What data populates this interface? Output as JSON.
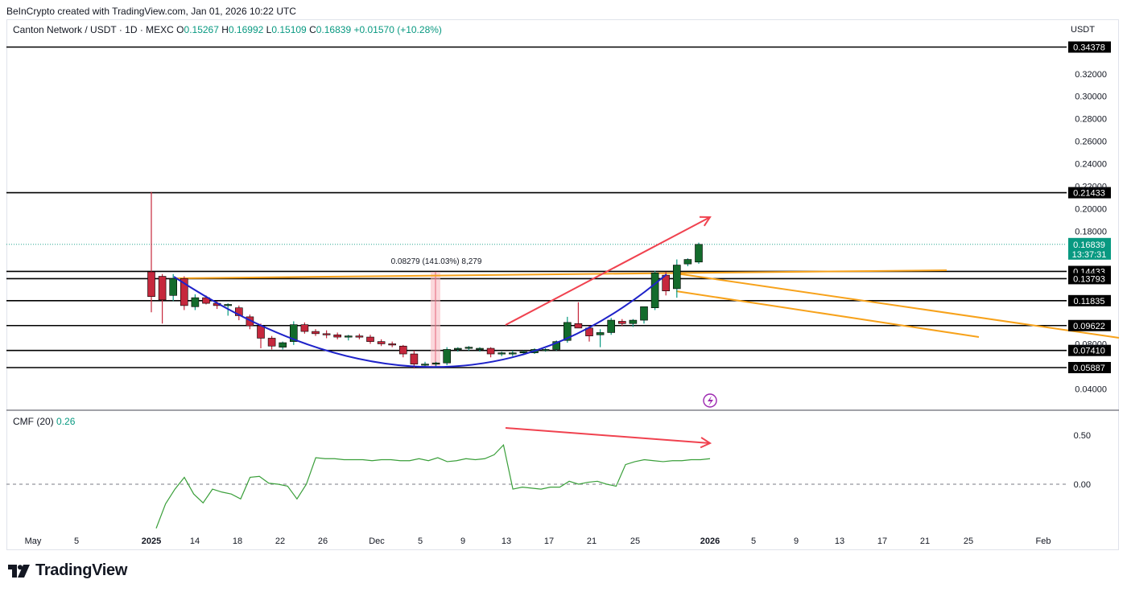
{
  "caption": "BeInCrypto created with TradingView.com, Jan 01, 2026 10:22 UTC",
  "legend": {
    "symbol": "Canton Network / USDT · 1D · MEXC",
    "o_label": "O",
    "o": "0.15267",
    "h_label": "H",
    "h": "0.16992",
    "l_label": "L",
    "l": "0.15109",
    "c_label": "C",
    "c": "0.16839",
    "change": "+0.01570 (+10.28%)"
  },
  "currency": "USDT",
  "cmf_legend": {
    "label": "CMF (20)",
    "value": "0.26"
  },
  "brand": "TradingView",
  "colors": {
    "up": "#089981",
    "up_body": "#136b2c",
    "down": "#c6283d",
    "level": "#000000",
    "trend": "#f7a21b",
    "cup": "#1e22c9",
    "arrow": "#f0424f",
    "cmf": "#3a9f3a"
  },
  "chart_data": [
    {
      "type": "candlestick",
      "price_axis": {
        "range": [
          0.03,
          0.35
        ],
        "ticks": [
          "0.32000",
          "0.30000",
          "0.28000",
          "0.26000",
          "0.24000",
          "0.22000",
          "0.20000",
          "0.18000",
          "0.08000",
          "0.04000"
        ]
      },
      "time_axis": {
        "labels": [
          "May",
          "5",
          "2025",
          "14",
          "18",
          "22",
          "26",
          "Dec",
          "5",
          "9",
          "13",
          "17",
          "21",
          "25",
          "2026",
          "5",
          "9",
          "13",
          "17",
          "21",
          "25",
          "Feb"
        ]
      },
      "horizontal_levels": [
        0.34378,
        0.21433,
        0.14433,
        0.13793,
        0.11835,
        0.09622,
        0.0741,
        0.05887
      ],
      "current_price": {
        "value": "0.16839",
        "countdown": "13:37:31"
      },
      "measure_label": "0.08279 (141.03%) 8,279",
      "candles": [
        {
          "o": 0.144,
          "h": 0.215,
          "l": 0.108,
          "c": 0.122
        },
        {
          "o": 0.14,
          "h": 0.142,
          "l": 0.098,
          "c": 0.119
        },
        {
          "o": 0.123,
          "h": 0.142,
          "l": 0.118,
          "c": 0.138
        },
        {
          "o": 0.138,
          "h": 0.14,
          "l": 0.11,
          "c": 0.114
        },
        {
          "o": 0.113,
          "h": 0.124,
          "l": 0.11,
          "c": 0.121
        },
        {
          "o": 0.121,
          "h": 0.123,
          "l": 0.115,
          "c": 0.116
        },
        {
          "o": 0.116,
          "h": 0.118,
          "l": 0.111,
          "c": 0.114
        },
        {
          "o": 0.114,
          "h": 0.116,
          "l": 0.105,
          "c": 0.115
        },
        {
          "o": 0.112,
          "h": 0.114,
          "l": 0.101,
          "c": 0.105
        },
        {
          "o": 0.104,
          "h": 0.106,
          "l": 0.093,
          "c": 0.096
        },
        {
          "o": 0.096,
          "h": 0.098,
          "l": 0.076,
          "c": 0.085
        },
        {
          "o": 0.085,
          "h": 0.087,
          "l": 0.075,
          "c": 0.078
        },
        {
          "o": 0.077,
          "h": 0.082,
          "l": 0.075,
          "c": 0.081
        },
        {
          "o": 0.082,
          "h": 0.1,
          "l": 0.079,
          "c": 0.097
        },
        {
          "o": 0.097,
          "h": 0.099,
          "l": 0.089,
          "c": 0.091
        },
        {
          "o": 0.091,
          "h": 0.093,
          "l": 0.087,
          "c": 0.089
        },
        {
          "o": 0.089,
          "h": 0.092,
          "l": 0.085,
          "c": 0.088
        },
        {
          "o": 0.088,
          "h": 0.09,
          "l": 0.084,
          "c": 0.086
        },
        {
          "o": 0.086,
          "h": 0.088,
          "l": 0.083,
          "c": 0.087
        },
        {
          "o": 0.087,
          "h": 0.089,
          "l": 0.084,
          "c": 0.086
        },
        {
          "o": 0.086,
          "h": 0.088,
          "l": 0.08,
          "c": 0.082
        },
        {
          "o": 0.082,
          "h": 0.084,
          "l": 0.078,
          "c": 0.08
        },
        {
          "o": 0.08,
          "h": 0.082,
          "l": 0.077,
          "c": 0.079
        },
        {
          "o": 0.078,
          "h": 0.079,
          "l": 0.068,
          "c": 0.071
        },
        {
          "o": 0.071,
          "h": 0.074,
          "l": 0.058,
          "c": 0.062
        },
        {
          "o": 0.061,
          "h": 0.064,
          "l": 0.059,
          "c": 0.062
        },
        {
          "o": 0.062,
          "h": 0.064,
          "l": 0.06,
          "c": 0.063
        },
        {
          "o": 0.063,
          "h": 0.077,
          "l": 0.061,
          "c": 0.075
        },
        {
          "o": 0.075,
          "h": 0.077,
          "l": 0.073,
          "c": 0.076
        },
        {
          "o": 0.076,
          "h": 0.078,
          "l": 0.074,
          "c": 0.077
        },
        {
          "o": 0.075,
          "h": 0.077,
          "l": 0.073,
          "c": 0.076
        },
        {
          "o": 0.076,
          "h": 0.077,
          "l": 0.068,
          "c": 0.071
        },
        {
          "o": 0.071,
          "h": 0.073,
          "l": 0.069,
          "c": 0.072
        },
        {
          "o": 0.071,
          "h": 0.074,
          "l": 0.069,
          "c": 0.072
        },
        {
          "o": 0.072,
          "h": 0.074,
          "l": 0.07,
          "c": 0.073
        },
        {
          "o": 0.072,
          "h": 0.076,
          "l": 0.071,
          "c": 0.075
        },
        {
          "o": 0.074,
          "h": 0.076,
          "l": 0.073,
          "c": 0.075
        },
        {
          "o": 0.075,
          "h": 0.083,
          "l": 0.074,
          "c": 0.082
        },
        {
          "o": 0.083,
          "h": 0.104,
          "l": 0.081,
          "c": 0.099
        },
        {
          "o": 0.098,
          "h": 0.117,
          "l": 0.095,
          "c": 0.094
        },
        {
          "o": 0.094,
          "h": 0.096,
          "l": 0.082,
          "c": 0.087
        },
        {
          "o": 0.088,
          "h": 0.093,
          "l": 0.077,
          "c": 0.09
        },
        {
          "o": 0.09,
          "h": 0.103,
          "l": 0.088,
          "c": 0.101
        },
        {
          "o": 0.1,
          "h": 0.102,
          "l": 0.096,
          "c": 0.098
        },
        {
          "o": 0.098,
          "h": 0.102,
          "l": 0.095,
          "c": 0.101
        },
        {
          "o": 0.101,
          "h": 0.112,
          "l": 0.098,
          "c": 0.113
        },
        {
          "o": 0.112,
          "h": 0.145,
          "l": 0.11,
          "c": 0.143
        },
        {
          "o": 0.141,
          "h": 0.144,
          "l": 0.123,
          "c": 0.127
        },
        {
          "o": 0.129,
          "h": 0.155,
          "l": 0.121,
          "c": 0.15
        },
        {
          "o": 0.151,
          "h": 0.156,
          "l": 0.149,
          "c": 0.155
        },
        {
          "o": 0.15267,
          "h": 0.16992,
          "l": 0.15109,
          "c": 0.16839
        }
      ]
    },
    {
      "type": "line",
      "name": "CMF (20)",
      "y_ticks": [
        "0.50",
        "0.00"
      ],
      "zero_line": 0,
      "values": [
        -0.45,
        -0.2,
        -0.05,
        0.07,
        -0.1,
        -0.19,
        -0.05,
        -0.08,
        -0.1,
        -0.15,
        0.07,
        0.08,
        0.01,
        0.0,
        -0.02,
        -0.15,
        0.0,
        0.27,
        0.26,
        0.26,
        0.25,
        0.25,
        0.25,
        0.24,
        0.25,
        0.25,
        0.24,
        0.24,
        0.26,
        0.24,
        0.27,
        0.23,
        0.24,
        0.26,
        0.25,
        0.26,
        0.3,
        0.4,
        -0.05,
        -0.03,
        -0.04,
        -0.05,
        -0.03,
        -0.03,
        0.03,
        0.0,
        0.02,
        0.03,
        0.0,
        -0.02,
        0.2,
        0.23,
        0.25,
        0.24,
        0.23,
        0.24,
        0.24,
        0.25,
        0.25,
        0.26
      ]
    }
  ]
}
